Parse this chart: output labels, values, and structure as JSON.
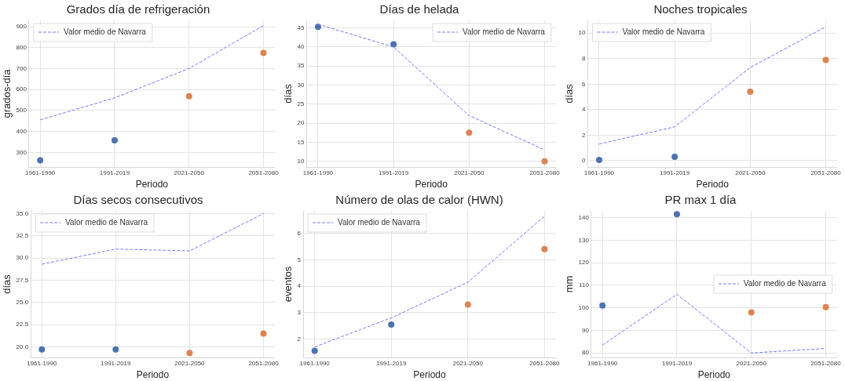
{
  "chart_data": [
    {
      "type": "line",
      "title": "Grados día de refrigeración",
      "xlabel": "Periodo",
      "ylabel": "grados-día",
      "categories": [
        "1961-1990",
        "1991-2019",
        "2021-2050",
        "2051-2080"
      ],
      "ylim": [
        230,
        930
      ],
      "yticks": [
        300,
        400,
        500,
        600,
        700,
        800,
        900
      ],
      "grid": true,
      "legend": "top left",
      "series": [
        {
          "name": "Valor medio de Navarra",
          "type": "line",
          "color": "#7777ff",
          "line_style": "dashed",
          "marker": "none",
          "values": [
            455,
            560,
            700,
            905
          ]
        },
        {
          "type": "scatter",
          "marker": "circle",
          "colors": [
            "#4c72b0",
            "#4c72b0",
            "#dd8452",
            "#dd8452"
          ],
          "values": [
            262,
            357,
            568,
            775
          ]
        }
      ]
    },
    {
      "type": "line",
      "title": "Días de helada",
      "xlabel": "Periodo",
      "ylabel": "días",
      "categories": [
        "1961-1990",
        "1991-2019",
        "2021-2050",
        "2051-2080"
      ],
      "ylim": [
        8.5,
        47
      ],
      "yticks": [
        10,
        15,
        20,
        25,
        30,
        35,
        40,
        45
      ],
      "grid": true,
      "legend": "top right",
      "series": [
        {
          "name": "Valor medio de Navarra",
          "type": "line",
          "color": "#7777ff",
          "line_style": "dashed",
          "marker": "none",
          "values": [
            46,
            40,
            22,
            13
          ]
        },
        {
          "type": "scatter",
          "marker": "circle",
          "colors": [
            "#4c72b0",
            "#4c72b0",
            "#dd8452",
            "#dd8452"
          ],
          "values": [
            45.3,
            40.7,
            17.5,
            10
          ]
        }
      ]
    },
    {
      "type": "line",
      "title": "Noches tropicales",
      "xlabel": "Periodo",
      "ylabel": "días",
      "categories": [
        "1961-1990",
        "1991-2019",
        "2021-2050",
        "2051-2080"
      ],
      "ylim": [
        -0.5,
        11
      ],
      "yticks": [
        0,
        2,
        4,
        6,
        8,
        10
      ],
      "grid": true,
      "legend": "top left",
      "series": [
        {
          "name": "Valor medio de Navarra",
          "type": "line",
          "color": "#7777ff",
          "line_style": "dashed",
          "marker": "none",
          "values": [
            1.3,
            2.65,
            7.3,
            10.5
          ]
        },
        {
          "type": "scatter",
          "marker": "circle",
          "colors": [
            "#4c72b0",
            "#4c72b0",
            "#dd8452",
            "#dd8452"
          ],
          "values": [
            0.05,
            0.3,
            5.4,
            7.9
          ]
        }
      ]
    },
    {
      "type": "line",
      "title": "Días secos consecutivos",
      "xlabel": "Periodo",
      "ylabel": "días",
      "categories": [
        "1961-1990",
        "1991-2019",
        "2021-2050",
        "2051-2080"
      ],
      "ylim": [
        18.8,
        35.3
      ],
      "yticks": [
        {
          "value": 20,
          "label": "20.0"
        },
        {
          "value": 22.5,
          "label": "22.5"
        },
        {
          "value": 25,
          "label": "25.0"
        },
        {
          "value": 27.5,
          "label": "27.5"
        },
        {
          "value": 30,
          "label": "30.0"
        },
        {
          "value": 32.5,
          "label": "32.5"
        },
        {
          "value": 35,
          "label": "35.0"
        }
      ],
      "grid": true,
      "legend": "top left",
      "series": [
        {
          "name": "Valor medio de Navarra",
          "type": "line",
          "color": "#7777ff",
          "line_style": "dashed",
          "marker": "none",
          "values": [
            29.3,
            31.0,
            30.8,
            35.0
          ]
        },
        {
          "type": "scatter",
          "marker": "circle",
          "colors": [
            "#4c72b0",
            "#4c72b0",
            "#dd8452",
            "#dd8452"
          ],
          "values": [
            19.7,
            19.7,
            19.3,
            21.5
          ]
        }
      ]
    },
    {
      "type": "line",
      "title": "Número de olas de calor (HWN)",
      "xlabel": "Periodo",
      "ylabel": "eventos",
      "categories": [
        "1961-1990",
        "1991-2019",
        "2021-2050",
        "2051-2080"
      ],
      "ylim": [
        1.3,
        6.85
      ],
      "yticks": [
        2,
        3,
        4,
        5,
        6
      ],
      "grid": true,
      "legend": "top left",
      "series": [
        {
          "name": "Valor medio de Navarra",
          "type": "line",
          "color": "#7777ff",
          "line_style": "dashed",
          "marker": "none",
          "values": [
            1.7,
            2.8,
            4.15,
            6.65
          ]
        },
        {
          "type": "scatter",
          "marker": "circle",
          "colors": [
            "#4c72b0",
            "#4c72b0",
            "#dd8452",
            "#dd8452"
          ],
          "values": [
            1.55,
            2.55,
            3.3,
            5.4
          ]
        }
      ]
    },
    {
      "type": "line",
      "title": "PR max 1 día",
      "xlabel": "Periodo",
      "ylabel": "mm",
      "categories": [
        "1961-1990",
        "1991-2019",
        "2021-2050",
        "2051-2080"
      ],
      "ylim": [
        78,
        143
      ],
      "yticks": [
        80,
        90,
        100,
        110,
        120,
        130,
        140
      ],
      "grid": true,
      "legend": "right",
      "series": [
        {
          "name": "Valor medio de Navarra",
          "type": "line",
          "color": "#7777ff",
          "line_style": "dashed",
          "marker": "none",
          "values": [
            83.5,
            106,
            80,
            82
          ]
        },
        {
          "type": "scatter",
          "marker": "circle",
          "colors": [
            "#4c72b0",
            "#4c72b0",
            "#dd8452",
            "#dd8452"
          ],
          "values": [
            101,
            141.5,
            98,
            100.3
          ]
        }
      ]
    }
  ]
}
